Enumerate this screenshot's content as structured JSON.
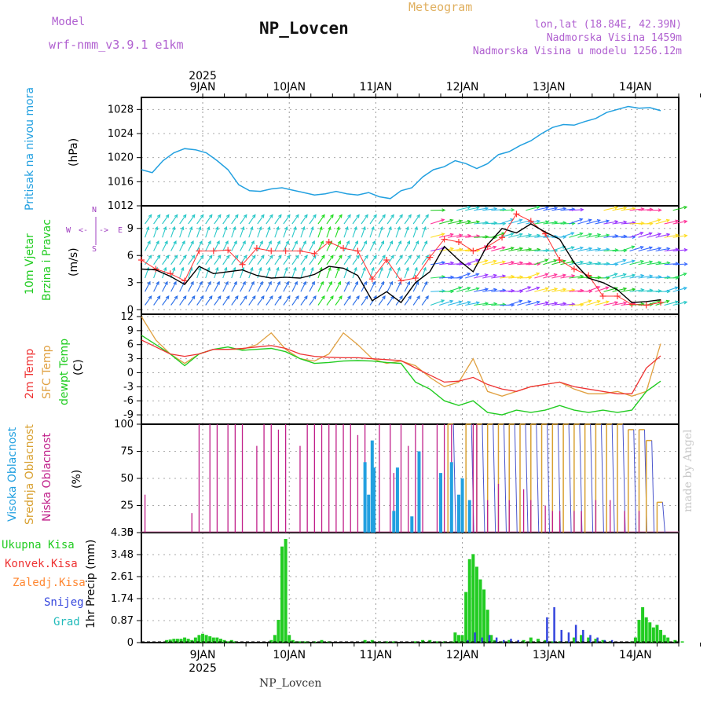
{
  "header": {
    "model_label": "Model",
    "model_name": "wrf-nmm_v3.9.1 e1km",
    "station": "NP_Lovcen",
    "meteogram": "Meteogram",
    "lonlat": "lon,lat (18.84E, 42.39N)",
    "elevation": "Nadmorska Visina 1459m",
    "elevation_model": "Nadmorska Visina u modelu 1256.12m"
  },
  "footer": {
    "station": "NP_Lovcen",
    "credit": "made by Angel"
  },
  "colors": {
    "pressure": "#22a0e0",
    "wind_label": "#22cc22",
    "wind_speed": "#000000",
    "wind_gust": "#ff3333",
    "temp_2m": "#ee3333",
    "temp_sfc": "#e0a040",
    "temp_dew": "#22cc22",
    "cloud_high": "#22a0e0",
    "cloud_mid": "#d8a030",
    "cloud_low": "#c0208a",
    "precip_total": "#22cc22",
    "precip_conv": "#ee3333",
    "precip_frozen": "#ff8833",
    "precip_snow": "#3344dd",
    "precip_hail": "#22bbbb",
    "compass": "#a040c0"
  },
  "chart_data": [
    {
      "type": "line",
      "panel": "pressure",
      "ylabel": "Pritisak na nivou mora",
      "unit": "(hPa)",
      "ylim": [
        1012,
        1030
      ],
      "yticks": [
        1012,
        1016,
        1020,
        1024,
        1028
      ],
      "x_time_hours": [
        0,
        3,
        6,
        9,
        12,
        15,
        18,
        21,
        24,
        27,
        30,
        33,
        36,
        39,
        42,
        45,
        48,
        51,
        54,
        57,
        60,
        63,
        66,
        69,
        72,
        75,
        78,
        81,
        84,
        87,
        90,
        93,
        96,
        99,
        102,
        105,
        108,
        111,
        114,
        117,
        120,
        123,
        126,
        129,
        132,
        135,
        138,
        141,
        144
      ],
      "series": [
        {
          "values": [
            1018.0,
            1017.5,
            1019.5,
            1020.8,
            1021.5,
            1021.3,
            1020.8,
            1019.5,
            1018.0,
            1015.5,
            1014.5,
            1014.4,
            1014.8,
            1015.0,
            1014.6,
            1014.2,
            1013.8,
            1014.0,
            1014.4,
            1014.0,
            1013.8,
            1014.2,
            1013.5,
            1013.2,
            1014.5,
            1015.0,
            1016.8,
            1018.0,
            1018.5,
            1019.5,
            1019.0,
            1018.2,
            1019.0,
            1020.5,
            1021.0,
            1022.0,
            1022.8,
            1024.0,
            1025.0,
            1025.5,
            1025.4,
            1026.0,
            1026.5,
            1027.5,
            1028.0,
            1028.5,
            1028.2,
            1028.3,
            1027.8
          ]
        }
      ]
    },
    {
      "type": "line",
      "panel": "wind",
      "ylabel": "10m Vjetar Brzina i Pravac",
      "unit": "(m/s)",
      "compass": {
        "s": "S",
        "n": "N",
        "w": "W",
        "e": "E",
        "arrow_w": "<-",
        "arrow_e": "->"
      },
      "ylim": [
        -0.5,
        11.5
      ],
      "yticks": [
        0,
        3,
        6,
        9
      ],
      "x_time_hours": [
        0,
        4,
        8,
        12,
        16,
        20,
        24,
        28,
        32,
        36,
        40,
        44,
        48,
        52,
        56,
        60,
        64,
        68,
        72,
        76,
        80,
        84,
        88,
        92,
        96,
        100,
        104,
        108,
        112,
        116,
        120,
        124,
        128,
        132,
        136,
        140,
        144
      ],
      "series": [
        {
          "name": "speed",
          "values": [
            4.5,
            4.4,
            3.7,
            2.8,
            4.8,
            4.0,
            4.2,
            4.4,
            3.8,
            3.5,
            3.6,
            3.5,
            3.9,
            4.8,
            4.6,
            3.8,
            1.0,
            2.0,
            0.8,
            3.0,
            4.2,
            7.0,
            5.5,
            4.2,
            7.2,
            9.0,
            8.5,
            9.5,
            8.6,
            7.8,
            5.2,
            3.5,
            3.0,
            2.2,
            0.8,
            0.9,
            1.1
          ]
        },
        {
          "name": "gust",
          "values": [
            5.5,
            4.5,
            4.0,
            3.2,
            6.5,
            6.5,
            6.6,
            5.0,
            6.8,
            6.5,
            6.5,
            6.5,
            6.2,
            7.5,
            6.8,
            6.5,
            3.4,
            5.5,
            3.2,
            3.5,
            5.8,
            7.8,
            7.5,
            6.5,
            7.0,
            8.0,
            10.6,
            9.8,
            8.4,
            5.5,
            4.5,
            3.8,
            1.5,
            1.5,
            0.6,
            0.5,
            0.8
          ]
        }
      ]
    },
    {
      "type": "line",
      "panel": "temperature",
      "ylabels": [
        "2m Temp",
        "SFC Temp",
        "dewpt Temp"
      ],
      "unit": "(C)",
      "ylim": [
        -11,
        12.5
      ],
      "yticks": [
        -9,
        -6,
        -3,
        0,
        3,
        6,
        9,
        12
      ],
      "x_time_hours": [
        0,
        4,
        8,
        12,
        16,
        20,
        24,
        28,
        32,
        36,
        40,
        44,
        48,
        52,
        56,
        60,
        64,
        68,
        72,
        76,
        80,
        84,
        88,
        92,
        96,
        100,
        104,
        108,
        112,
        116,
        120,
        124,
        128,
        132,
        136,
        140,
        144
      ],
      "series": [
        {
          "name": "2m",
          "values": [
            7,
            5.5,
            4,
            3.5,
            4,
            5,
            5,
            5.2,
            5.5,
            5.8,
            5.2,
            4,
            3.5,
            3.3,
            3.2,
            3.2,
            3.0,
            2.8,
            2.6,
            1.0,
            -0.5,
            -2.0,
            -1.8,
            -1.0,
            -2.5,
            -3.5,
            -4.0,
            -3.0,
            -2.5,
            -2.0,
            -3.0,
            -3.5,
            -4.0,
            -4.5,
            -4.5,
            1.0,
            3.6
          ]
        },
        {
          "name": "sfc",
          "values": [
            12,
            7,
            4,
            2,
            4,
            5,
            5,
            5,
            6.0,
            8.5,
            5,
            3,
            2.5,
            4,
            8.5,
            6.0,
            3.0,
            2.0,
            2.5,
            1.5,
            -1.0,
            -3.0,
            -2.0,
            3.0,
            -4.0,
            -5.0,
            -4.0,
            -3.0,
            -2.5,
            -2.0,
            -3.5,
            -4.5,
            -4.5,
            -4.0,
            -5.0,
            -4.0,
            6.2
          ]
        },
        {
          "name": "dewpt",
          "values": [
            8,
            6,
            4,
            1.5,
            4,
            5,
            5.5,
            4.8,
            5,
            5.2,
            4.5,
            3,
            2,
            2.2,
            2.5,
            2.6,
            2.5,
            2.2,
            2.0,
            -2.0,
            -3.5,
            -6.0,
            -7.0,
            -6.0,
            -8.5,
            -9.0,
            -8.0,
            -8.5,
            -8.0,
            -7.0,
            -8.0,
            -8.5,
            -8.0,
            -8.5,
            -8.0,
            -4.0,
            -1.8
          ]
        }
      ]
    },
    {
      "type": "bar",
      "panel": "cloud",
      "ylabels": [
        "Visoka Oblacnost",
        "Srednja Oblacnost",
        "Niska Oblacnost"
      ],
      "unit": "(%)",
      "ylim": [
        0,
        100
      ],
      "yticks": [
        0,
        25,
        50,
        75,
        100
      ],
      "series": [
        {
          "name": "low",
          "x_hours": [
            1,
            14,
            16,
            19,
            21,
            24,
            26,
            28,
            32,
            34,
            36,
            38,
            40,
            44,
            46,
            48,
            50,
            52,
            54,
            56,
            58,
            60,
            62,
            66,
            69,
            70,
            72,
            74,
            76,
            78,
            82,
            84,
            86,
            89,
            92,
            93,
            96,
            99,
            102,
            106,
            108,
            112,
            114,
            116,
            120,
            122,
            126,
            130,
            134,
            138
          ],
          "values": [
            35,
            18,
            100,
            100,
            100,
            100,
            100,
            100,
            80,
            100,
            100,
            95,
            100,
            80,
            100,
            100,
            100,
            100,
            100,
            100,
            100,
            90,
            100,
            100,
            100,
            55,
            100,
            80,
            100,
            100,
            100,
            100,
            100,
            50,
            100,
            100,
            30,
            45,
            30,
            40,
            30,
            25,
            20,
            20,
            20,
            20,
            30,
            30,
            20,
            20
          ]
        },
        {
          "name": "mid",
          "x_hours": [
            85,
            90,
            93,
            96,
            99,
            102,
            105,
            108,
            111,
            114,
            117,
            120,
            123,
            126,
            129,
            132,
            135,
            138,
            140,
            143
          ],
          "values": [
            100,
            100,
            100,
            100,
            100,
            100,
            100,
            100,
            100,
            100,
            100,
            100,
            100,
            100,
            100,
            100,
            95,
            95,
            85,
            28
          ]
        },
        {
          "name": "high",
          "x_hours": [
            62,
            63,
            64,
            64.5,
            70,
            71,
            75,
            77,
            83,
            86,
            88,
            89,
            91
          ],
          "values": [
            65,
            35,
            85,
            60,
            20,
            60,
            15,
            75,
            55,
            65,
            35,
            50,
            30
          ]
        }
      ]
    },
    {
      "type": "bar",
      "panel": "precip",
      "ylabel": "1hr Precip (mm)",
      "ylabels": [
        "Ukupna Kisa",
        "Konvek.Kisa",
        "Zaledj.Kisa",
        "Snijeg",
        "Grad"
      ],
      "ylim": [
        0,
        4.35
      ],
      "yticks": [
        0,
        0.87,
        1.74,
        2.61,
        3.48,
        4.35
      ],
      "x_dates": [
        "9JAN",
        "10JAN",
        "11JAN",
        "12JAN",
        "13JAN",
        "14JAN"
      ],
      "year": "2025",
      "series": [
        {
          "name": "total",
          "x_hours": [
            7,
            8,
            9,
            10,
            11,
            12,
            13,
            14,
            15,
            16,
            17,
            18,
            19,
            20,
            21,
            22,
            23,
            24,
            25,
            26,
            36,
            37,
            38,
            39,
            40,
            41,
            42,
            43,
            44,
            45,
            46,
            48,
            50,
            52,
            62,
            64,
            66,
            68,
            70,
            76,
            78,
            80,
            82,
            84,
            86,
            87,
            88,
            89,
            90,
            91,
            92,
            93,
            94,
            95,
            96,
            97,
            98,
            100,
            102,
            106,
            108,
            110,
            112,
            114,
            116,
            118,
            120,
            122,
            124,
            126,
            128,
            130,
            136,
            137,
            138,
            139,
            140,
            141,
            142,
            143,
            144,
            145,
            146,
            148,
            150
          ],
          "values": [
            0.1,
            0.12,
            0.15,
            0.15,
            0.15,
            0.2,
            0.15,
            0.1,
            0.2,
            0.3,
            0.35,
            0.3,
            0.25,
            0.2,
            0.2,
            0.15,
            0.1,
            0.05,
            0.1,
            0.05,
            0.1,
            0.3,
            0.9,
            3.8,
            4.1,
            0.3,
            0.1,
            0.05,
            0.05,
            0.05,
            0.05,
            0.05,
            0.1,
            0.05,
            0.1,
            0.1,
            0.05,
            0.05,
            0.05,
            0.05,
            0.1,
            0.1,
            0.05,
            0.05,
            0.05,
            0.4,
            0.3,
            0.3,
            2.0,
            3.3,
            3.5,
            3.0,
            2.5,
            2.1,
            1.3,
            0.3,
            0.1,
            0.05,
            0.1,
            0.1,
            0.2,
            0.15,
            0.1,
            0.05,
            0.05,
            0.05,
            0.2,
            0.3,
            0.2,
            0.15,
            0.1,
            0.05,
            0.05,
            0.2,
            0.9,
            1.4,
            1.0,
            0.8,
            0.6,
            0.7,
            0.5,
            0.3,
            0.2,
            0.1,
            0.05
          ]
        },
        {
          "name": "snow",
          "x_hours": [
            90,
            92,
            94,
            96,
            98,
            100,
            102,
            104,
            112,
            114,
            116,
            118,
            120,
            122,
            124,
            126,
            128,
            130
          ],
          "values": [
            0.1,
            0.4,
            0.2,
            0.3,
            0.2,
            0.1,
            0.15,
            0.1,
            1.0,
            1.4,
            0.5,
            0.4,
            0.7,
            0.5,
            0.3,
            0.2,
            0.1,
            0.1
          ]
        }
      ]
    }
  ]
}
